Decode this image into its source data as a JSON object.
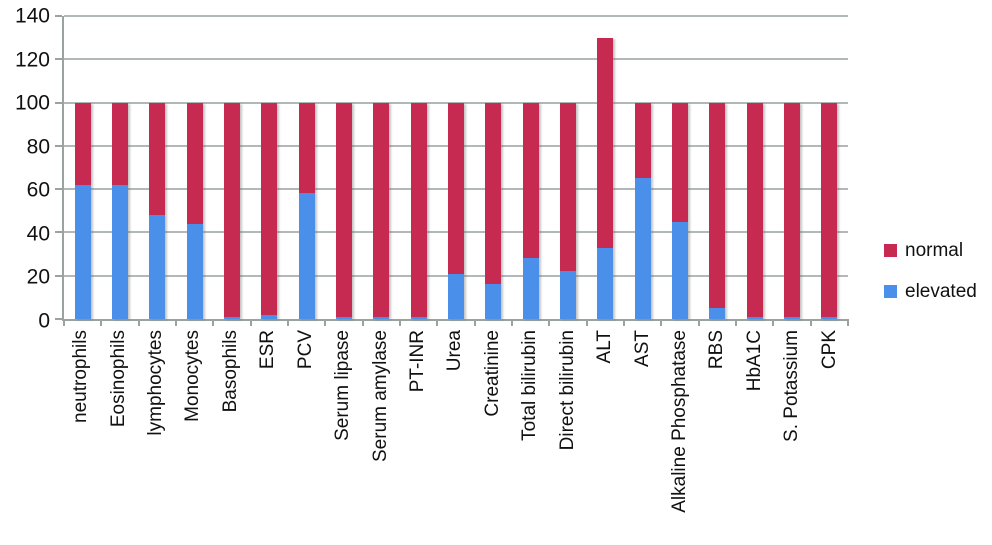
{
  "chart_data": {
    "type": "bar",
    "subtype": "stacked-vertical",
    "title": "",
    "xlabel": "",
    "ylabel": "",
    "ylim": [
      0,
      140
    ],
    "yticks": [
      0,
      20,
      40,
      60,
      80,
      100,
      120,
      140
    ],
    "grid": true,
    "legend_position": "right",
    "categories": [
      "neutrophils",
      "Eosinophils",
      "lymphocytes",
      "Monocytes",
      "Basophils",
      "ESR",
      "PCV",
      "Serum lipase",
      "Serum amylase",
      "PT-INR",
      "Urea",
      "Creatinine",
      "Total bilirubin",
      "Direct bilirubin",
      "ALT",
      "AST",
      "Alkaline Phosphatase",
      "RBS",
      "HbA1C",
      "S. Potassium",
      "CPK"
    ],
    "series": [
      {
        "name": "elevated",
        "color": "#4a8fe9",
        "values": [
          62,
          62,
          48,
          44,
          1,
          2,
          58,
          1,
          1,
          1,
          21,
          16,
          28,
          22,
          33,
          65,
          45,
          5,
          1,
          1,
          1
        ]
      },
      {
        "name": "normal",
        "color": "#c62a51",
        "values": [
          38,
          38,
          52,
          56,
          99,
          98,
          42,
          99,
          99,
          99,
          79,
          84,
          72,
          78,
          97,
          35,
          55,
          95,
          99,
          99,
          99
        ]
      }
    ],
    "bar_totals": [
      100,
      100,
      100,
      100,
      100,
      100,
      100,
      100,
      100,
      100,
      100,
      100,
      100,
      100,
      130,
      100,
      100,
      100,
      100,
      100,
      100
    ]
  },
  "legend": {
    "items": [
      {
        "label": "normal",
        "color": "#c62a51"
      },
      {
        "label": "elevated",
        "color": "#4a8fe9"
      }
    ]
  },
  "colors": {
    "normal": "#c62a51",
    "elevated": "#4a8fe9",
    "gridline": "#b2b8b8",
    "axis": "#9aa2a2",
    "text": "#111111",
    "background": "#ffffff"
  }
}
